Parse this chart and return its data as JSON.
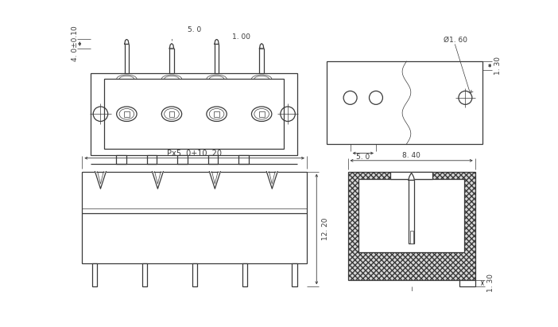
{
  "line_color": "#3a3a3a",
  "dim_color": "#3a3a3a",
  "linewidth": 0.9,
  "thin_lw": 0.5,
  "dim_lw": 0.6,
  "fig_width": 7.02,
  "fig_height": 4.11,
  "dpi": 100,
  "annotations": {
    "dim_40_010": "4. 0±0.10",
    "dim_50_top": "5. 0",
    "dim_100": "1. 00",
    "dim_dia160": "Ø1. 60",
    "dim_50_tr": "5. 0",
    "dim_130_tr": "1. 30",
    "dim_px": "Px5. 0+10. 20",
    "dim_1220": "12. 20",
    "dim_840": "8. 40",
    "dim_130_br": "1. 30"
  }
}
